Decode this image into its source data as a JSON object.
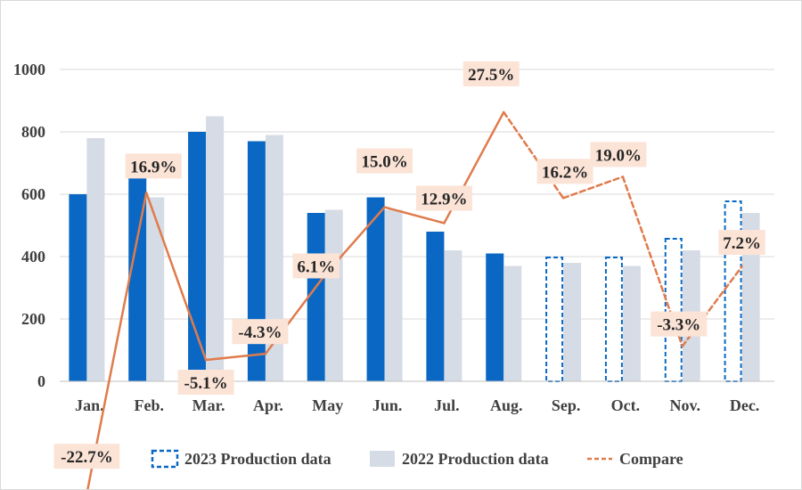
{
  "chart_data": {
    "type": "bar",
    "title": "",
    "xlabel": "",
    "ylabel": "",
    "ylim": [
      0,
      1000
    ],
    "yticks": [
      "0",
      "200",
      "400",
      "600",
      "800",
      "1000"
    ],
    "grid": true,
    "legend_position": "bottom",
    "categories": [
      "Jan.",
      "Feb.",
      "Mar.",
      "Apr.",
      "May",
      "Jun.",
      "Jul.",
      "Aug.",
      "Sep.",
      "Oct.",
      "Nov.",
      "Dec."
    ],
    "series": [
      {
        "name": "2023 Production data",
        "type": "bar",
        "color": "#0A68C4",
        "values": [
          600,
          680,
          800,
          770,
          540,
          590,
          480,
          410,
          400,
          400,
          460,
          580
        ],
        "style": [
          "solid",
          "solid",
          "solid",
          "solid",
          "solid",
          "solid",
          "solid",
          "solid",
          "dashed",
          "dashed",
          "dashed",
          "dashed"
        ]
      },
      {
        "name": "2022 Production data",
        "type": "bar",
        "color": "#D6DCE5",
        "values": [
          780,
          590,
          850,
          790,
          550,
          550,
          420,
          370,
          380,
          370,
          420,
          540
        ]
      },
      {
        "name": "Compare",
        "type": "line",
        "color": "#E07B4C",
        "values": [
          -22.7,
          16.9,
          -5.1,
          -4.3,
          6.1,
          15.0,
          12.9,
          27.5,
          16.2,
          19.0,
          -3.3,
          7.2
        ],
        "labels": [
          "-22.7%",
          "16.9%",
          "-5.1%",
          "-4.3%",
          "6.1%",
          "15.0%",
          "12.9%",
          "27.5%",
          "16.2%",
          "19.0%",
          "-3.3%",
          "7.2%"
        ],
        "line_style": [
          "solid",
          "solid",
          "solid",
          "solid",
          "solid",
          "solid",
          "solid",
          "dashed",
          "dashed",
          "dashed",
          "dashed"
        ],
        "label_bg": "#FBE3D6"
      }
    ]
  }
}
